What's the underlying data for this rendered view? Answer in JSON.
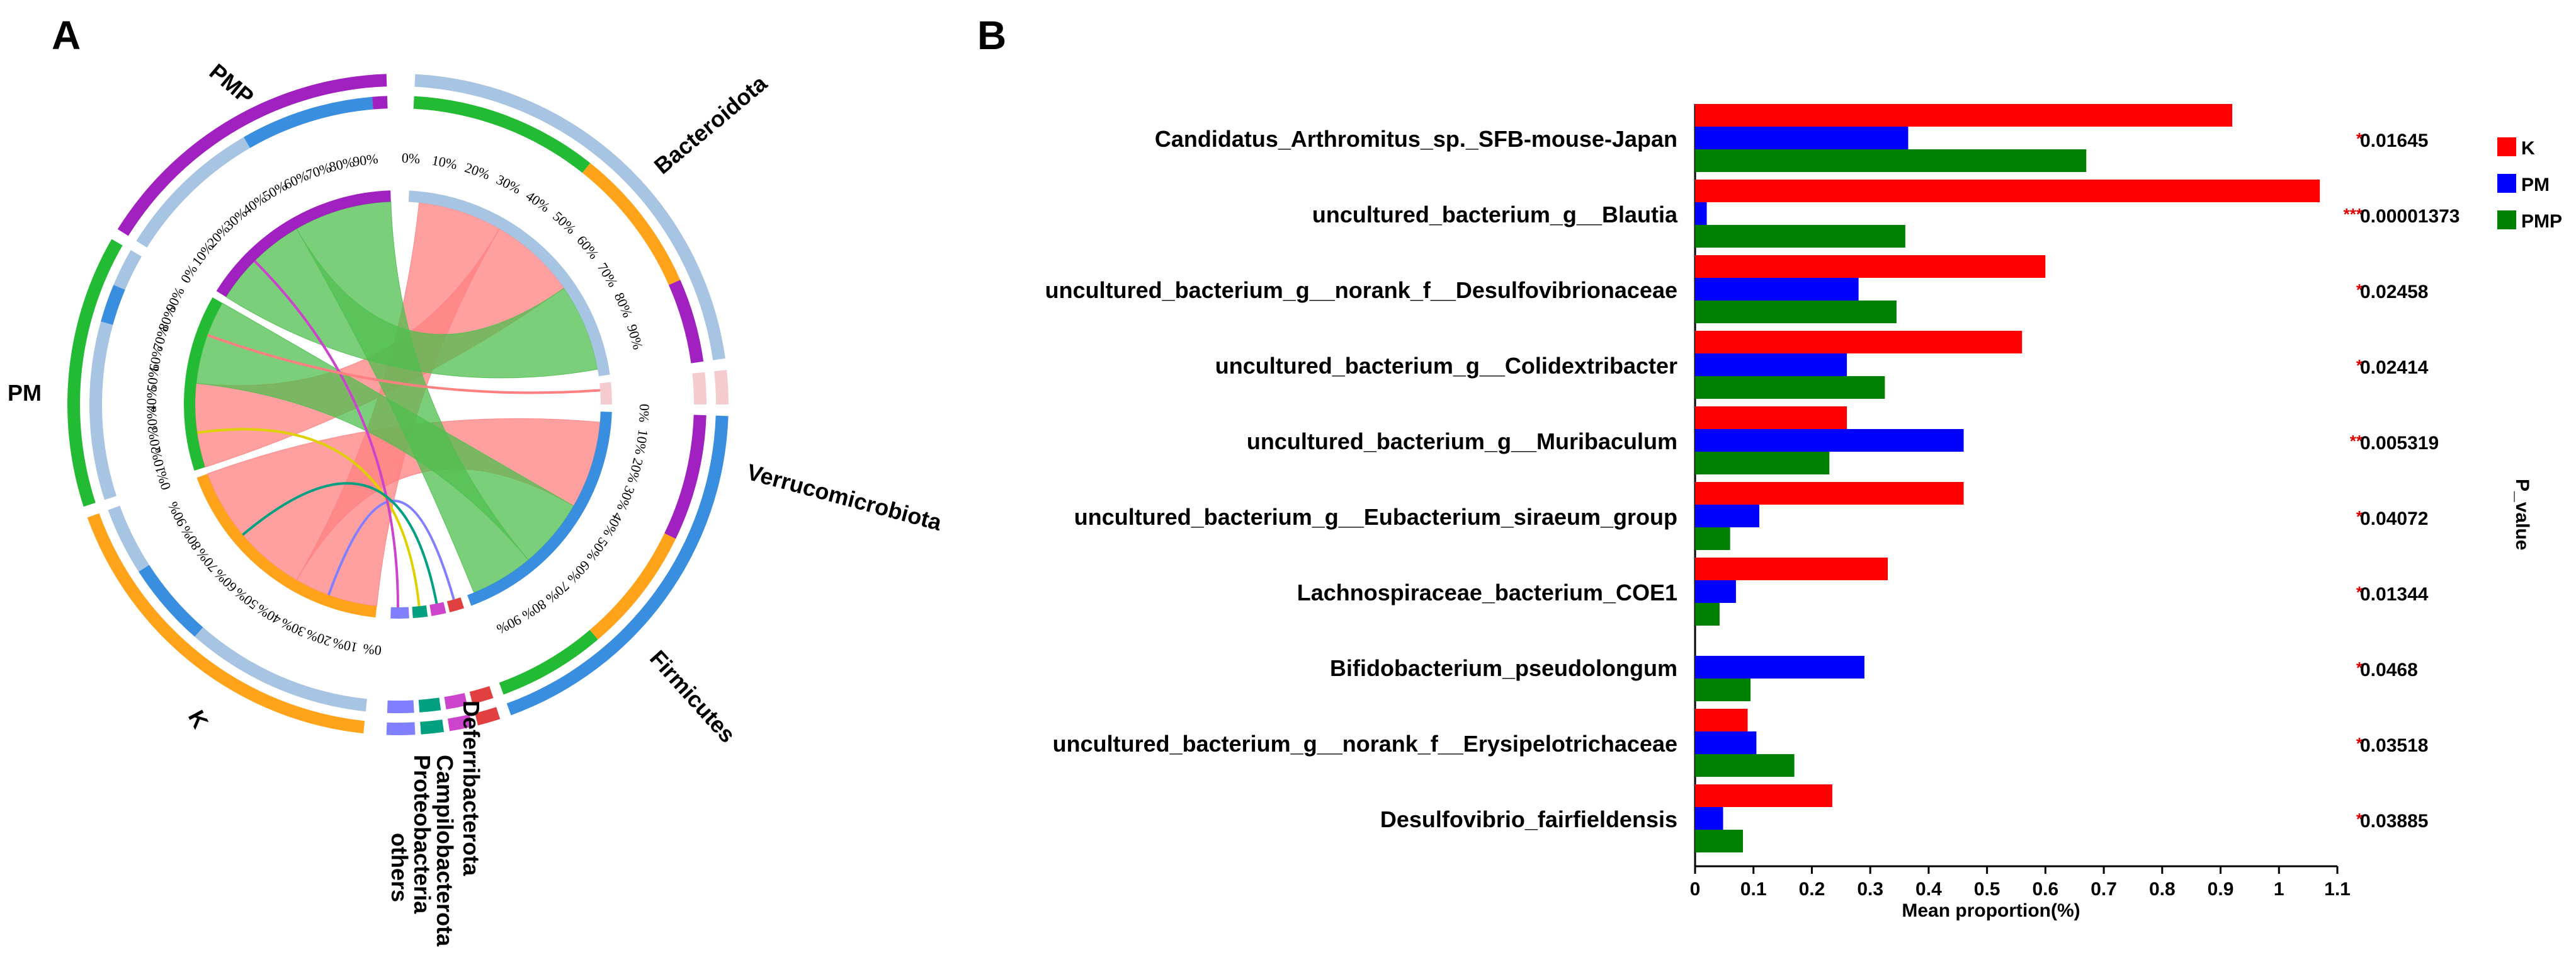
{
  "panels": {
    "a": "A",
    "b": "B"
  },
  "colors": {
    "K": "#ff0000",
    "PM": "#0000ff",
    "PMP": "#008000",
    "Bacteroidota": "#a7c4e2",
    "Verrucomicrobiota": "#f4ccd0",
    "Firmicutes": "#3a8ee0",
    "others": "#8080ff",
    "Proteobacteria": "#00a080",
    "Campilobacterota": "#cc44cc",
    "Deferribacterota": "#e04040",
    "green_band": "#22bb33",
    "orange_band": "#ffa31a",
    "purple_band": "#a020c0",
    "blue_band": "#3a8ee0",
    "grey_band": "#a7c4e2"
  },
  "chart_data": [
    {
      "type": "chord",
      "samples": [
        "K",
        "PM",
        "PMP"
      ],
      "phyla": [
        "Bacteroidota",
        "Verrucomicrobiota",
        "Firmicutes",
        "Deferribacterota",
        "Campilobacterota",
        "Proteobacteria",
        "others"
      ],
      "links": [
        {
          "from": "K",
          "to": "Bacteroidota",
          "color": "#ff8080"
        },
        {
          "from": "K",
          "to": "Firmicutes",
          "color": "#ff8080"
        },
        {
          "from": "PM",
          "to": "Bacteroidota",
          "color": "#ff8080"
        },
        {
          "from": "PM",
          "to": "Firmicutes",
          "color": "#4fbf4f"
        },
        {
          "from": "PMP",
          "to": "Bacteroidota",
          "color": "#4fbf4f"
        },
        {
          "from": "PMP",
          "to": "Firmicutes",
          "color": "#4fbf4f"
        }
      ],
      "percent_ticks": [
        "0%",
        "10%",
        "20%",
        "30%",
        "40%",
        "50%",
        "60%",
        "70%",
        "80%",
        "90%"
      ]
    },
    {
      "type": "bar",
      "orientation": "horizontal",
      "categories": [
        "Candidatus_Arthromitus_sp._SFB-mouse-Japan",
        "uncultured_bacterium_g__Blautia",
        "uncultured_bacterium_g__norank_f__Desulfovibrionaceae",
        "uncultured_bacterium_g__Colidextribacter",
        "uncultured_bacterium_g__Muribaculum",
        "uncultured_bacterium_g__Eubacterium_siraeum_group",
        "Lachnospiraceae_bacterium_COE1",
        "Bifidobacterium_pseudolongum",
        "uncultured_bacterium_g__norank_f__Erysipelotrichaceae",
        "Desulfovibrio_fairfieldensis"
      ],
      "series": [
        {
          "name": "K",
          "values": [
            0.92,
            1.07,
            0.6,
            0.56,
            0.26,
            0.46,
            0.33,
            0.0,
            0.09,
            0.235
          ]
        },
        {
          "name": "PM",
          "values": [
            0.365,
            0.02,
            0.28,
            0.26,
            0.46,
            0.11,
            0.07,
            0.29,
            0.105,
            0.048
          ]
        },
        {
          "name": "PMP",
          "values": [
            0.67,
            0.36,
            0.345,
            0.325,
            0.23,
            0.06,
            0.042,
            0.095,
            0.17,
            0.082
          ]
        }
      ],
      "p_values": [
        "0.01645",
        "0.00001373",
        "0.02458",
        "0.02414",
        "0.005319",
        "0.04072",
        "0.01344",
        "0.0468",
        "0.03518",
        "0.03885"
      ],
      "significance": [
        "*",
        "***",
        "*",
        "*",
        "**",
        "*",
        "*",
        "*",
        "*",
        "*"
      ],
      "xlabel": "Mean proportion(%)",
      "p_axis_label": "P_value",
      "xlim": [
        0,
        1.1
      ],
      "xticks": [
        "0",
        "0.1",
        "0.2",
        "0.3",
        "0.4",
        "0.5",
        "0.6",
        "0.7",
        "0.8",
        "0.9",
        "1",
        "1.1"
      ],
      "legend": [
        "K",
        "PM",
        "PMP"
      ],
      "legend_position": "top-right"
    }
  ]
}
